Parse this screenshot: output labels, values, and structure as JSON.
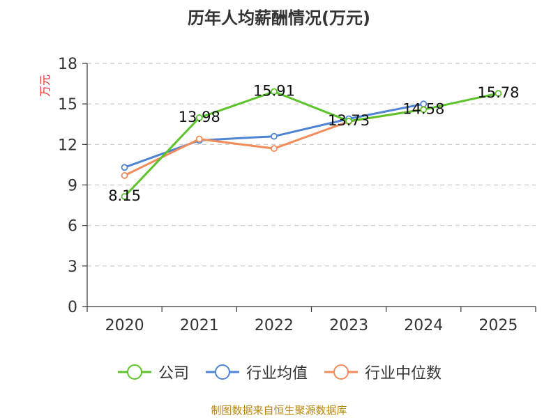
{
  "page": {
    "title": "历年人均薪酬情况(万元)",
    "source": "制图数据来自恒生聚源数据库"
  },
  "chart_data": {
    "type": "line",
    "title": "历年人均薪酬情况(万元)",
    "xlabel": "",
    "ylabel": "万元",
    "categories": [
      "2020",
      "2021",
      "2022",
      "2023",
      "2024",
      "2025"
    ],
    "ylim": [
      0,
      18
    ],
    "yticks": [
      0,
      3,
      6,
      9,
      12,
      15,
      18
    ],
    "grid": "horizontal dashed",
    "legend_position": "bottom",
    "series": [
      {
        "name": "公司",
        "color": "#5cc42a",
        "values": [
          8.15,
          13.98,
          15.91,
          13.73,
          14.58,
          15.78
        ],
        "labels": [
          "8.15",
          "13.98",
          "15.91",
          "13.73",
          "14.58",
          "15.78"
        ]
      },
      {
        "name": "行业均值",
        "color": "#4f83d4",
        "values": [
          10.3,
          12.3,
          12.6,
          13.9,
          15.0,
          null
        ]
      },
      {
        "name": "行业中位数",
        "color": "#f28c5a",
        "values": [
          9.7,
          12.4,
          11.7,
          13.7,
          14.6,
          null
        ]
      }
    ]
  }
}
